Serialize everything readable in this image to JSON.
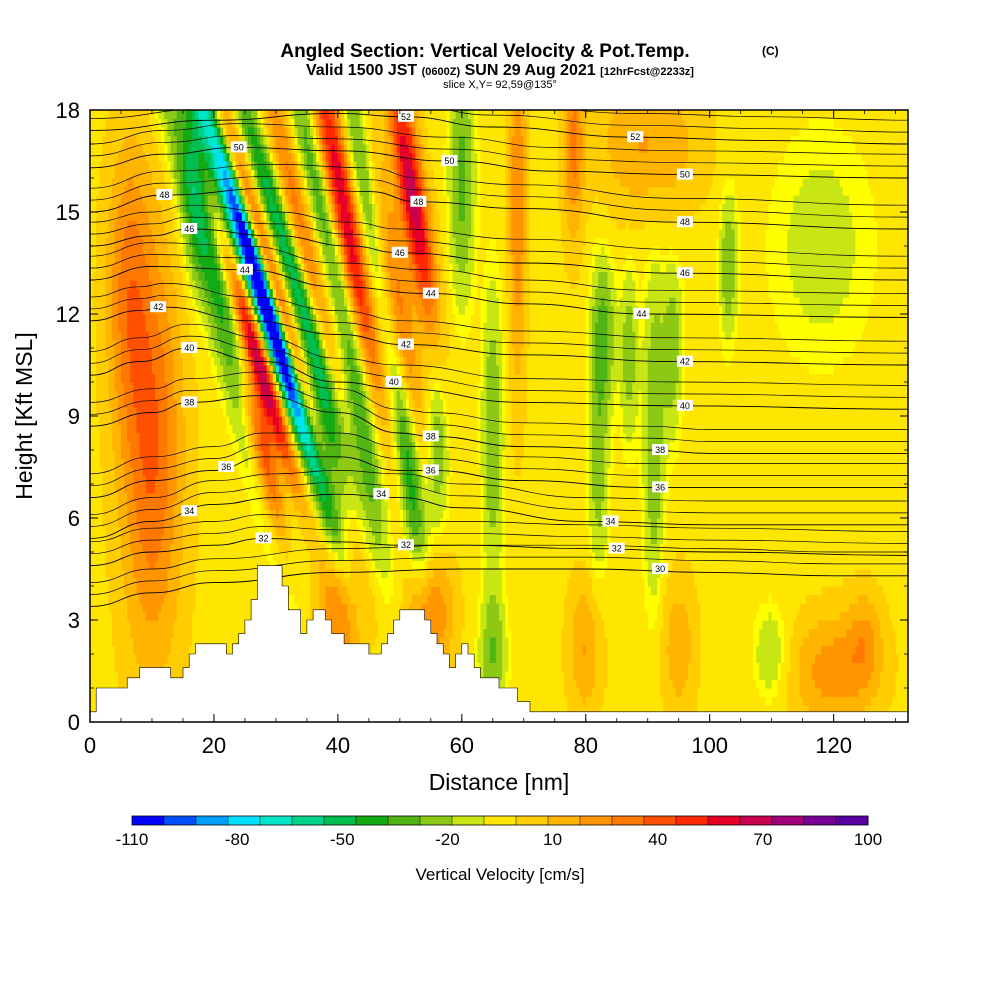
{
  "chart_data": {
    "type": "heatmap",
    "title": "Angled Section: Vertical Velocity & Pot.Temp.",
    "title_mark": "(C)",
    "subtitle_main": "Valid 1500 JST",
    "subtitle_z": "(0600Z)",
    "subtitle_date": "SUN 29 Aug 2021",
    "subtitle_fcst": "[12hrFcst@2233z]",
    "slice_label": "slice X,Y= 92,59@135°",
    "xlabel": "Distance [nm]",
    "ylabel": "Height [Kft MSL]",
    "xlim": [
      0,
      132
    ],
    "ylim": [
      0,
      18
    ],
    "x_ticks": [
      "0",
      "20",
      "40",
      "60",
      "80",
      "100",
      "120"
    ],
    "y_ticks": [
      "0",
      "3",
      "6",
      "9",
      "12",
      "15",
      "18"
    ],
    "colorbar": {
      "label": "Vertical Velocity [cm/s]",
      "tick_labels": [
        "-110",
        "-80",
        "-50",
        "-20",
        "10",
        "40",
        "70",
        "100"
      ],
      "colors": [
        "#0000ff",
        "#0050ff",
        "#00a0ff",
        "#00e0ff",
        "#00e6c8",
        "#00d28c",
        "#00be50",
        "#14aa14",
        "#50b414",
        "#8cc814",
        "#c8e614",
        "#ffff00",
        "#ffe600",
        "#ffcd00",
        "#ffb400",
        "#ff9600",
        "#ff7800",
        "#ff5000",
        "#ff2800",
        "#e60028",
        "#c80050",
        "#a00078",
        "#780096",
        "#5a00a0"
      ]
    },
    "theta_contour_labels": [
      "30",
      "32",
      "34",
      "36",
      "38",
      "40",
      "42",
      "44",
      "46",
      "48",
      "50",
      "52"
    ],
    "theta_contours": [
      {
        "label": "30",
        "points": [
          [
            0,
            3.4
          ],
          [
            10,
            3.8
          ],
          [
            20,
            4.1
          ],
          [
            40,
            4.4
          ],
          [
            60,
            4.5
          ],
          [
            80,
            4.5
          ],
          [
            100,
            4.4
          ],
          [
            120,
            4.3
          ],
          [
            132,
            4.3
          ]
        ],
        "labels_at": [
          [
            92,
            4.5
          ]
        ]
      },
      {
        "label": "32",
        "points": [
          [
            0,
            4.6
          ],
          [
            10,
            5.0
          ],
          [
            20,
            5.2
          ],
          [
            28,
            5.4
          ],
          [
            40,
            5.3
          ],
          [
            50,
            5.2
          ],
          [
            60,
            5.2
          ],
          [
            80,
            5.1
          ],
          [
            100,
            5.0
          ],
          [
            132,
            4.9
          ]
        ],
        "labels_at": [
          [
            28,
            5.4
          ],
          [
            51,
            5.2
          ],
          [
            85,
            5.1
          ]
        ]
      },
      {
        "label": "34",
        "points": [
          [
            0,
            5.4
          ],
          [
            10,
            5.9
          ],
          [
            20,
            6.4
          ],
          [
            30,
            6.6
          ],
          [
            40,
            6.7
          ],
          [
            50,
            6.6
          ],
          [
            60,
            6.3
          ],
          [
            80,
            5.9
          ],
          [
            100,
            5.8
          ],
          [
            132,
            5.8
          ]
        ],
        "labels_at": [
          [
            16,
            6.2
          ],
          [
            47,
            6.7
          ],
          [
            84,
            5.9
          ]
        ]
      },
      {
        "label": "36",
        "points": [
          [
            0,
            6.6
          ],
          [
            10,
            7.1
          ],
          [
            20,
            7.4
          ],
          [
            28,
            7.8
          ],
          [
            40,
            7.8
          ],
          [
            50,
            7.4
          ],
          [
            55,
            7.4
          ],
          [
            70,
            7.1
          ],
          [
            90,
            6.9
          ],
          [
            100,
            6.9
          ],
          [
            132,
            6.9
          ]
        ],
        "labels_at": [
          [
            22,
            7.5
          ],
          [
            55,
            7.4
          ],
          [
            92,
            6.9
          ]
        ]
      },
      {
        "label": "38",
        "points": [
          [
            0,
            8.7
          ],
          [
            10,
            9.1
          ],
          [
            16,
            9.4
          ],
          [
            28,
            9.6
          ],
          [
            40,
            9.1
          ],
          [
            50,
            8.5
          ],
          [
            55,
            8.4
          ],
          [
            70,
            8.1
          ],
          [
            90,
            8.0
          ],
          [
            100,
            7.9
          ],
          [
            132,
            7.9
          ]
        ],
        "labels_at": [
          [
            16,
            9.4
          ],
          [
            55,
            8.4
          ],
          [
            92,
            8.0
          ]
        ]
      },
      {
        "label": "40",
        "points": [
          [
            0,
            10.2
          ],
          [
            8,
            10.6
          ],
          [
            16,
            11.0
          ],
          [
            28,
            10.6
          ],
          [
            40,
            10.0
          ],
          [
            50,
            9.8
          ],
          [
            70,
            9.4
          ],
          [
            95,
            9.3
          ],
          [
            132,
            9.2
          ]
        ],
        "labels_at": [
          [
            16,
            11.0
          ],
          [
            49,
            10.0
          ],
          [
            96,
            9.3
          ]
        ]
      },
      {
        "label": "42",
        "points": [
          [
            0,
            11.8
          ],
          [
            8,
            12.1
          ],
          [
            12,
            12.2
          ],
          [
            26,
            11.8
          ],
          [
            40,
            11.4
          ],
          [
            51,
            11.1
          ],
          [
            70,
            10.8
          ],
          [
            95,
            10.6
          ],
          [
            132,
            10.5
          ]
        ],
        "labels_at": [
          [
            11,
            12.2
          ],
          [
            51,
            11.1
          ],
          [
            96,
            10.6
          ]
        ]
      },
      {
        "label": "44",
        "points": [
          [
            0,
            13.0
          ],
          [
            10,
            13.4
          ],
          [
            25,
            13.3
          ],
          [
            40,
            12.8
          ],
          [
            55,
            12.6
          ],
          [
            70,
            12.3
          ],
          [
            90,
            12.0
          ],
          [
            132,
            11.9
          ]
        ],
        "labels_at": [
          [
            25,
            13.3
          ],
          [
            55,
            12.6
          ],
          [
            89,
            12.0
          ]
        ]
      },
      {
        "label": "46",
        "points": [
          [
            0,
            14.0
          ],
          [
            10,
            14.3
          ],
          [
            16,
            14.5
          ],
          [
            30,
            14.3
          ],
          [
            42,
            14.0
          ],
          [
            50,
            13.8
          ],
          [
            70,
            13.5
          ],
          [
            95,
            13.2
          ],
          [
            132,
            13.0
          ]
        ],
        "labels_at": [
          [
            16,
            14.5
          ],
          [
            50,
            13.8
          ],
          [
            96,
            13.2
          ]
        ]
      },
      {
        "label": "48",
        "points": [
          [
            0,
            15.0
          ],
          [
            12,
            15.5
          ],
          [
            30,
            15.7
          ],
          [
            45,
            15.6
          ],
          [
            53,
            15.3
          ],
          [
            70,
            15.1
          ],
          [
            95,
            14.7
          ],
          [
            132,
            14.5
          ]
        ],
        "labels_at": [
          [
            12,
            15.5
          ],
          [
            53,
            15.3
          ],
          [
            96,
            14.7
          ]
        ]
      },
      {
        "label": "50",
        "points": [
          [
            0,
            16.3
          ],
          [
            12,
            16.7
          ],
          [
            24,
            16.9
          ],
          [
            40,
            16.8
          ],
          [
            58,
            16.5
          ],
          [
            75,
            16.2
          ],
          [
            96,
            16.1
          ],
          [
            132,
            16.0
          ]
        ],
        "labels_at": [
          [
            24,
            16.9
          ],
          [
            58,
            16.5
          ],
          [
            96,
            16.1
          ]
        ]
      },
      {
        "label": "52",
        "points": [
          [
            0,
            17.4
          ],
          [
            20,
            17.7
          ],
          [
            40,
            17.9
          ],
          [
            51,
            17.8
          ],
          [
            65,
            17.5
          ],
          [
            88,
            17.2
          ],
          [
            110,
            17.1
          ],
          [
            132,
            17.0
          ]
        ],
        "labels_at": [
          [
            51,
            17.8
          ],
          [
            88,
            17.2
          ]
        ]
      }
    ],
    "terrain_profile": [
      [
        0,
        0.3
      ],
      [
        1,
        0.3
      ],
      [
        1,
        1.0
      ],
      [
        6,
        1.0
      ],
      [
        6,
        1.3
      ],
      [
        8,
        1.3
      ],
      [
        8,
        1.6
      ],
      [
        13,
        1.6
      ],
      [
        13,
        1.3
      ],
      [
        15,
        1.3
      ],
      [
        15,
        1.6
      ],
      [
        16,
        1.6
      ],
      [
        16,
        2.0
      ],
      [
        17,
        2.0
      ],
      [
        17,
        2.3
      ],
      [
        22,
        2.3
      ],
      [
        22,
        2.0
      ],
      [
        23,
        2.0
      ],
      [
        23,
        2.3
      ],
      [
        24,
        2.3
      ],
      [
        24,
        2.6
      ],
      [
        25,
        2.6
      ],
      [
        25,
        3.0
      ],
      [
        26,
        3.0
      ],
      [
        26,
        3.6
      ],
      [
        27,
        3.6
      ],
      [
        27,
        4.6
      ],
      [
        31,
        4.6
      ],
      [
        31,
        4.0
      ],
      [
        32,
        4.0
      ],
      [
        32,
        3.3
      ],
      [
        34,
        3.3
      ],
      [
        34,
        2.6
      ],
      [
        35,
        2.6
      ],
      [
        35,
        3.0
      ],
      [
        36,
        3.0
      ],
      [
        36,
        3.3
      ],
      [
        38,
        3.3
      ],
      [
        38,
        3.0
      ],
      [
        39,
        3.0
      ],
      [
        39,
        2.6
      ],
      [
        41,
        2.6
      ],
      [
        41,
        2.3
      ],
      [
        45,
        2.3
      ],
      [
        45,
        2.0
      ],
      [
        47,
        2.0
      ],
      [
        47,
        2.3
      ],
      [
        48,
        2.3
      ],
      [
        48,
        2.6
      ],
      [
        49,
        2.6
      ],
      [
        49,
        3.0
      ],
      [
        50,
        3.0
      ],
      [
        50,
        3.3
      ],
      [
        54,
        3.3
      ],
      [
        54,
        3.0
      ],
      [
        55,
        3.0
      ],
      [
        55,
        2.6
      ],
      [
        56,
        2.6
      ],
      [
        56,
        2.3
      ],
      [
        57,
        2.3
      ],
      [
        57,
        2.0
      ],
      [
        58,
        2.0
      ],
      [
        58,
        1.6
      ],
      [
        59,
        1.6
      ],
      [
        59,
        2.0
      ],
      [
        60,
        2.0
      ],
      [
        60,
        2.3
      ],
      [
        61,
        2.3
      ],
      [
        61,
        2.0
      ],
      [
        62,
        2.0
      ],
      [
        62,
        1.6
      ],
      [
        63,
        1.6
      ],
      [
        63,
        1.3
      ],
      [
        66,
        1.3
      ],
      [
        66,
        1.0
      ],
      [
        69,
        1.0
      ],
      [
        69,
        0.6
      ],
      [
        71,
        0.6
      ],
      [
        71,
        0.3
      ],
      [
        132,
        0.3
      ]
    ],
    "velocity_features": [
      {
        "xc": 10,
        "zc": 8.0,
        "sx": 3.5,
        "sz": 4.5,
        "v": 45,
        "tilt": 0
      },
      {
        "xc": 6,
        "zc": 13.0,
        "sx": 2.5,
        "sz": 3,
        "v": 30,
        "tilt": 0
      },
      {
        "xc": 17,
        "zc": 16.5,
        "sx": 1.6,
        "sz": 2.5,
        "v": -25,
        "tilt": 0
      },
      {
        "xc": 22,
        "zc": 12.0,
        "sx": 2.2,
        "sz": 5.5,
        "v": -45,
        "tilt": -0.35
      },
      {
        "xc": 25,
        "zc": 14.0,
        "sx": 1.5,
        "sz": 4,
        "v": -85,
        "tilt": -0.4
      },
      {
        "xc": 27.5,
        "zc": 10.5,
        "sx": 1.3,
        "sz": 2.5,
        "v": 95,
        "tilt": -0.4
      },
      {
        "xc": 28,
        "zc": 8.0,
        "sx": 1.4,
        "sz": 2.0,
        "v": 80,
        "tilt": -0.3
      },
      {
        "xc": 28.5,
        "zc": 13.5,
        "sx": 1.3,
        "sz": 4,
        "v": 55,
        "tilt": -0.4
      },
      {
        "xc": 30,
        "zc": 11.5,
        "sx": 1.1,
        "sz": 3,
        "v": -90,
        "tilt": -0.4
      },
      {
        "xc": 31.5,
        "zc": 14.0,
        "sx": 1.4,
        "sz": 4,
        "v": -55,
        "tilt": -0.4
      },
      {
        "xc": 34,
        "zc": 14.5,
        "sx": 1.5,
        "sz": 4,
        "v": 40,
        "tilt": -0.3
      },
      {
        "xc": 37,
        "zc": 15.5,
        "sx": 1.5,
        "sz": 3.5,
        "v": -35,
        "tilt": -0.3
      },
      {
        "xc": 41,
        "zc": 15.0,
        "sx": 1.6,
        "sz": 4,
        "v": 75,
        "tilt": -0.25
      },
      {
        "xc": 44,
        "zc": 16.0,
        "sx": 1.3,
        "sz": 3,
        "v": -30,
        "tilt": -0.2
      },
      {
        "xc": 40,
        "zc": 3.0,
        "sx": 3,
        "sz": 1.5,
        "v": 35,
        "tilt": 0
      },
      {
        "xc": 38,
        "zc": 8.5,
        "sx": 1.6,
        "sz": 2.5,
        "v": -40,
        "tilt": -0.2
      },
      {
        "xc": 44,
        "zc": 8.5,
        "sx": 1.6,
        "sz": 2.5,
        "v": -35,
        "tilt": -0.2
      },
      {
        "xc": 52,
        "zc": 15.5,
        "sx": 1.6,
        "sz": 2.8,
        "v": 80,
        "tilt": -0.2
      },
      {
        "xc": 50,
        "zc": 12.0,
        "sx": 1.5,
        "sz": 3,
        "v": 40,
        "tilt": -0.2
      },
      {
        "xc": 51.5,
        "zc": 7.5,
        "sx": 1.4,
        "sz": 2.5,
        "v": -45,
        "tilt": -0.15
      },
      {
        "xc": 56,
        "zc": 8.0,
        "sx": 1.3,
        "sz": 2,
        "v": -25,
        "tilt": 0
      },
      {
        "xc": 55,
        "zc": 3.2,
        "sx": 2.5,
        "sz": 1.2,
        "v": 40,
        "tilt": 0
      },
      {
        "xc": 60,
        "zc": 16.0,
        "sx": 1.4,
        "sz": 2.5,
        "v": -30,
        "tilt": 0
      },
      {
        "xc": 65,
        "zc": 8.5,
        "sx": 1.2,
        "sz": 3,
        "v": -25,
        "tilt": 0
      },
      {
        "xc": 69,
        "zc": 15.5,
        "sx": 1.0,
        "sz": 4,
        "v": 35,
        "tilt": 0
      },
      {
        "xc": 78,
        "zc": 17.0,
        "sx": 1.2,
        "sz": 2,
        "v": 35,
        "tilt": 0
      },
      {
        "xc": 82,
        "zc": 8.0,
        "sx": 1.2,
        "sz": 3,
        "v": -22,
        "tilt": 0
      },
      {
        "xc": 83,
        "zc": 11.5,
        "sx": 1.3,
        "sz": 1.5,
        "v": -25,
        "tilt": 0
      },
      {
        "xc": 87,
        "zc": 10.8,
        "sx": 1.0,
        "sz": 1.8,
        "v": -22,
        "tilt": 0
      },
      {
        "xc": 91,
        "zc": 8.5,
        "sx": 1.2,
        "sz": 3.5,
        "v": -25,
        "tilt": 0
      },
      {
        "xc": 94,
        "zc": 11.0,
        "sx": 1.2,
        "sz": 1.8,
        "v": -22,
        "tilt": 0
      },
      {
        "xc": 103,
        "zc": 13.5,
        "sx": 1.0,
        "sz": 1.5,
        "v": -25,
        "tilt": 0
      },
      {
        "xc": 65,
        "zc": 2.0,
        "sx": 1.5,
        "sz": 1.2,
        "v": -25,
        "tilt": 0
      },
      {
        "xc": 80,
        "zc": 2.2,
        "sx": 2,
        "sz": 1.5,
        "v": 25,
        "tilt": 0
      },
      {
        "xc": 95,
        "zc": 2.2,
        "sx": 2,
        "sz": 1.5,
        "v": 22,
        "tilt": 0
      },
      {
        "xc": 120,
        "zc": 1.5,
        "sx": 5,
        "sz": 1.2,
        "v": 30,
        "tilt": 0
      },
      {
        "xc": 110,
        "zc": 2.0,
        "sx": 2,
        "sz": 1,
        "v": -18,
        "tilt": 0
      },
      {
        "xc": 125,
        "zc": 2.5,
        "sx": 2,
        "sz": 1,
        "v": 20,
        "tilt": 0
      },
      {
        "xc": 118,
        "zc": 14.0,
        "sx": 6,
        "sz": 2.5,
        "v": -12,
        "tilt": 0
      },
      {
        "xc": 90,
        "zc": 17.0,
        "sx": 6,
        "sz": 1.5,
        "v": 25,
        "tilt": 0
      }
    ]
  }
}
